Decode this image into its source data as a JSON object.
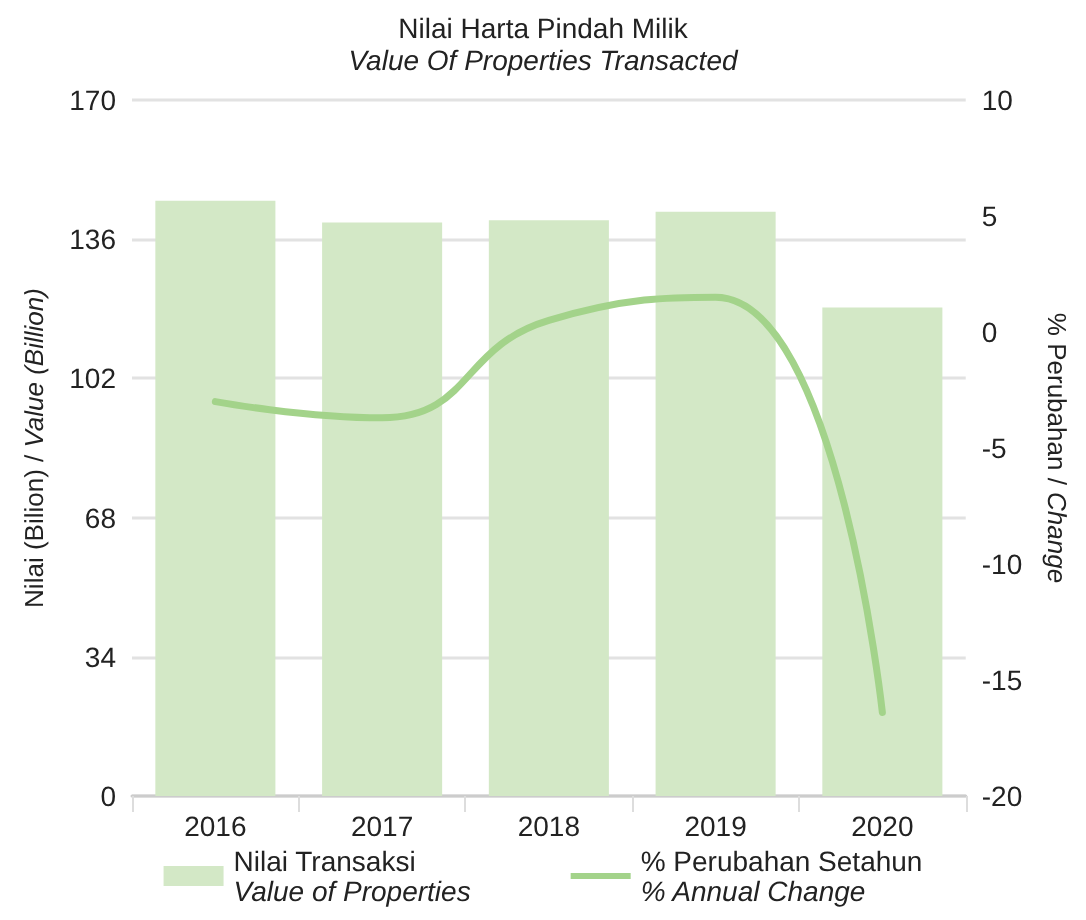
{
  "chart_data": {
    "type": "bar",
    "title": "Nilai Harta Pindah Milik",
    "subtitle": "Value Of Properties Transacted",
    "ylabel": "Nilai (Bilion) / Value (Billion)",
    "y2label": "% Perubahan / Change",
    "categories": [
      "2016",
      "2017",
      "2018",
      "2019",
      "2020"
    ],
    "series": [
      {
        "name": "Nilai Transaksi\nValue of Properties",
        "color": "#d3e8c6",
        "values": [
          145.4,
          140.1,
          140.6,
          142.7,
          119.3
        ]
      },
      {
        "name": "% Perubahan Setahun\n% Annual Change",
        "type": "line",
        "axis": "y2",
        "color": "#a3d38a",
        "values": [
          -3.0,
          -3.7,
          0.5,
          1.5,
          -16.4
        ]
      }
    ],
    "ylim": [
      0,
      170
    ],
    "yticks": [
      0,
      34,
      68,
      102,
      136,
      170
    ],
    "y2lim": [
      -20,
      10
    ],
    "y2ticks": [
      -20,
      -15,
      -10,
      -5,
      0,
      5,
      10
    ],
    "grid": "y",
    "legend": "bottom",
    "marker": "none",
    "line_style": "solid"
  }
}
